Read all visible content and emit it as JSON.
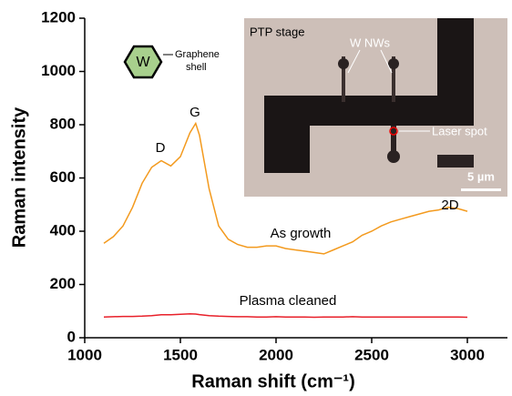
{
  "chart_data": {
    "type": "line",
    "x_label": "Raman shift (cm⁻¹)",
    "y_label": "Raman intensity",
    "x": [
      1100,
      1150,
      1200,
      1250,
      1300,
      1350,
      1400,
      1450,
      1500,
      1550,
      1580,
      1600,
      1650,
      1700,
      1750,
      1800,
      1850,
      1900,
      1950,
      2000,
      2050,
      2100,
      2150,
      2200,
      2250,
      2300,
      2350,
      2400,
      2450,
      2500,
      2550,
      2600,
      2650,
      2700,
      2750,
      2800,
      2850,
      2900,
      2950,
      3000
    ],
    "series": [
      {
        "name": "As growth",
        "color": "#f39a1e",
        "values": [
          355,
          380,
          420,
          490,
          580,
          640,
          665,
          645,
          680,
          770,
          805,
          760,
          560,
          420,
          370,
          350,
          340,
          340,
          345,
          345,
          335,
          330,
          325,
          320,
          315,
          330,
          345,
          360,
          385,
          400,
          420,
          435,
          445,
          455,
          465,
          475,
          480,
          490,
          485,
          475
        ]
      },
      {
        "name": "Plasma cleaned",
        "color": "#e8202a",
        "values": [
          78,
          79,
          80,
          80,
          81,
          83,
          86,
          86,
          88,
          90,
          89,
          87,
          83,
          81,
          80,
          79,
          79,
          78,
          78,
          79,
          78,
          78,
          78,
          77,
          78,
          78,
          78,
          79,
          78,
          78,
          78,
          78,
          78,
          78,
          78,
          78,
          78,
          78,
          78,
          77
        ]
      }
    ],
    "xlim": [
      1000,
      3200
    ],
    "ylim": [
      0,
      1200
    ],
    "xticks": [
      1000,
      1500,
      2000,
      2500,
      3000
    ],
    "yticks": [
      0,
      200,
      400,
      600,
      800,
      1000,
      1200
    ],
    "annotations": [
      "D",
      "G",
      "2D"
    ]
  },
  "inset": {
    "title": "PTP stage",
    "labels": [
      "W NWs",
      "Laser spot"
    ],
    "scale_bar": "5 µm"
  },
  "schematic": {
    "core": "W",
    "shell": [
      "Graphene",
      "shell"
    ]
  }
}
